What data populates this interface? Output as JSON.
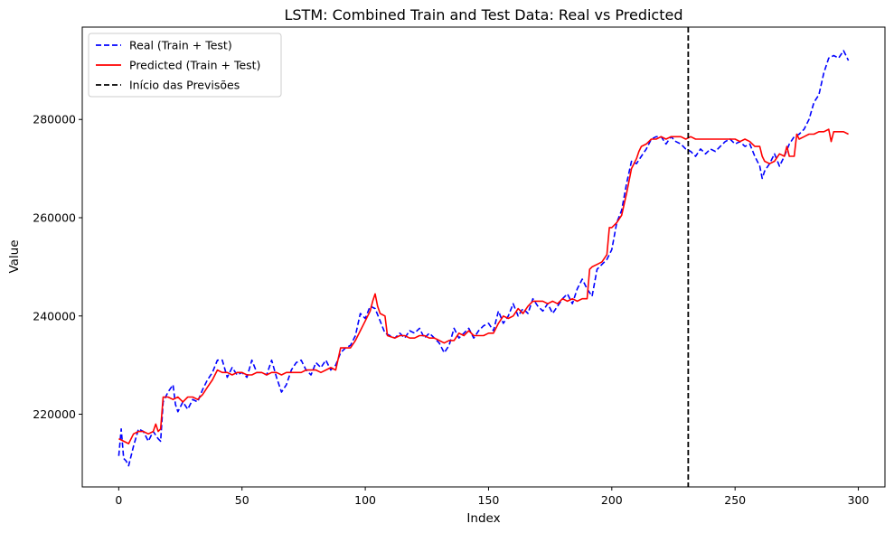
{
  "chart_data": {
    "type": "line",
    "title": "LSTM: Combined Train and Test Data: Real vs Predicted",
    "xlabel": "Index",
    "ylabel": "Value",
    "xlim": [
      -14.8,
      310.8
    ],
    "ylim": [
      205200,
      298800
    ],
    "xticks": [
      0,
      50,
      100,
      150,
      200,
      250,
      300
    ],
    "yticks": [
      220000,
      240000,
      260000,
      280000
    ],
    "grid": false,
    "legend_position": "top-left",
    "vline": {
      "x": 231,
      "label": "Início das Previsões",
      "color": "#000000",
      "style": "dashed"
    },
    "series": [
      {
        "name": "Real (Train + Test)",
        "color": "#0000ff",
        "style": "dashed",
        "points": [
          [
            0,
            211500
          ],
          [
            1,
            217000
          ],
          [
            2,
            211000
          ],
          [
            3,
            210500
          ],
          [
            4,
            209500
          ],
          [
            6,
            213500
          ],
          [
            8,
            217000
          ],
          [
            10,
            216500
          ],
          [
            12,
            214500
          ],
          [
            14,
            216500
          ],
          [
            16,
            215000
          ],
          [
            17,
            214500
          ],
          [
            18,
            222500
          ],
          [
            20,
            224500
          ],
          [
            22,
            226000
          ],
          [
            23,
            222000
          ],
          [
            24,
            220500
          ],
          [
            26,
            222500
          ],
          [
            28,
            221000
          ],
          [
            30,
            223000
          ],
          [
            32,
            222500
          ],
          [
            34,
            225000
          ],
          [
            36,
            227000
          ],
          [
            38,
            228500
          ],
          [
            40,
            231000
          ],
          [
            42,
            231000
          ],
          [
            44,
            227500
          ],
          [
            46,
            229500
          ],
          [
            48,
            228000
          ],
          [
            50,
            228500
          ],
          [
            52,
            227500
          ],
          [
            54,
            231000
          ],
          [
            56,
            228500
          ],
          [
            58,
            228500
          ],
          [
            60,
            228000
          ],
          [
            62,
            231000
          ],
          [
            64,
            227500
          ],
          [
            66,
            224500
          ],
          [
            68,
            226000
          ],
          [
            70,
            229000
          ],
          [
            72,
            230500
          ],
          [
            74,
            231000
          ],
          [
            76,
            229000
          ],
          [
            78,
            228000
          ],
          [
            80,
            230500
          ],
          [
            82,
            229500
          ],
          [
            84,
            231000
          ],
          [
            86,
            229000
          ],
          [
            88,
            230000
          ],
          [
            90,
            232500
          ],
          [
            92,
            233500
          ],
          [
            94,
            234000
          ],
          [
            96,
            236000
          ],
          [
            98,
            240500
          ],
          [
            100,
            239500
          ],
          [
            102,
            242000
          ],
          [
            104,
            241500
          ],
          [
            106,
            239000
          ],
          [
            108,
            236500
          ],
          [
            110,
            236000
          ],
          [
            112,
            235500
          ],
          [
            114,
            236500
          ],
          [
            116,
            235500
          ],
          [
            118,
            237000
          ],
          [
            120,
            236500
          ],
          [
            122,
            237500
          ],
          [
            124,
            235500
          ],
          [
            126,
            236500
          ],
          [
            128,
            235500
          ],
          [
            130,
            234500
          ],
          [
            132,
            232500
          ],
          [
            134,
            234000
          ],
          [
            136,
            237500
          ],
          [
            138,
            235500
          ],
          [
            140,
            236500
          ],
          [
            142,
            237500
          ],
          [
            144,
            235500
          ],
          [
            146,
            237000
          ],
          [
            148,
            238000
          ],
          [
            150,
            238500
          ],
          [
            152,
            237000
          ],
          [
            154,
            241000
          ],
          [
            156,
            238500
          ],
          [
            158,
            240000
          ],
          [
            160,
            242500
          ],
          [
            162,
            240000
          ],
          [
            164,
            241500
          ],
          [
            166,
            240500
          ],
          [
            168,
            243500
          ],
          [
            170,
            242000
          ],
          [
            172,
            241000
          ],
          [
            174,
            242500
          ],
          [
            176,
            240500
          ],
          [
            178,
            242000
          ],
          [
            180,
            243500
          ],
          [
            182,
            244500
          ],
          [
            184,
            242500
          ],
          [
            186,
            245500
          ],
          [
            188,
            247500
          ],
          [
            190,
            245500
          ],
          [
            192,
            244000
          ],
          [
            194,
            249500
          ],
          [
            196,
            250500
          ],
          [
            198,
            251500
          ],
          [
            200,
            253500
          ],
          [
            202,
            259000
          ],
          [
            204,
            261500
          ],
          [
            206,
            267000
          ],
          [
            208,
            271500
          ],
          [
            210,
            271000
          ],
          [
            212,
            272500
          ],
          [
            214,
            274000
          ],
          [
            216,
            276000
          ],
          [
            218,
            276500
          ],
          [
            220,
            276500
          ],
          [
            222,
            275000
          ],
          [
            224,
            276500
          ],
          [
            226,
            275500
          ],
          [
            228,
            275000
          ],
          [
            230,
            274000
          ],
          [
            232,
            273500
          ],
          [
            234,
            272500
          ],
          [
            236,
            274000
          ],
          [
            238,
            273000
          ],
          [
            240,
            274000
          ],
          [
            242,
            273500
          ],
          [
            244,
            274500
          ],
          [
            246,
            275500
          ],
          [
            248,
            276000
          ],
          [
            250,
            275000
          ],
          [
            252,
            275500
          ],
          [
            254,
            274500
          ],
          [
            256,
            275000
          ],
          [
            258,
            272500
          ],
          [
            260,
            270500
          ],
          [
            261,
            268000
          ],
          [
            262,
            269500
          ],
          [
            264,
            271000
          ],
          [
            266,
            273000
          ],
          [
            268,
            270500
          ],
          [
            270,
            272500
          ],
          [
            272,
            275000
          ],
          [
            274,
            276500
          ],
          [
            276,
            277000
          ],
          [
            278,
            278000
          ],
          [
            280,
            280000
          ],
          [
            282,
            283500
          ],
          [
            284,
            285000
          ],
          [
            286,
            289500
          ],
          [
            288,
            292500
          ],
          [
            290,
            293000
          ],
          [
            292,
            292500
          ],
          [
            294,
            294000
          ],
          [
            296,
            292000
          ]
        ]
      },
      {
        "name": "Predicted (Train + Test)",
        "color": "#ff0000",
        "style": "solid",
        "points": [
          [
            0,
            215000
          ],
          [
            2,
            214500
          ],
          [
            4,
            214000
          ],
          [
            6,
            216000
          ],
          [
            8,
            216500
          ],
          [
            10,
            216500
          ],
          [
            12,
            216000
          ],
          [
            14,
            216500
          ],
          [
            15,
            218000
          ],
          [
            16,
            216500
          ],
          [
            17,
            217000
          ],
          [
            18,
            223500
          ],
          [
            20,
            223500
          ],
          [
            22,
            223000
          ],
          [
            24,
            223500
          ],
          [
            26,
            222500
          ],
          [
            28,
            223500
          ],
          [
            30,
            223500
          ],
          [
            32,
            223000
          ],
          [
            34,
            224000
          ],
          [
            36,
            225500
          ],
          [
            38,
            227000
          ],
          [
            40,
            229000
          ],
          [
            42,
            228500
          ],
          [
            44,
            228500
          ],
          [
            46,
            228000
          ],
          [
            48,
            228500
          ],
          [
            50,
            228500
          ],
          [
            52,
            228000
          ],
          [
            54,
            228000
          ],
          [
            56,
            228500
          ],
          [
            58,
            228500
          ],
          [
            60,
            228000
          ],
          [
            62,
            228500
          ],
          [
            64,
            228500
          ],
          [
            66,
            228000
          ],
          [
            68,
            228500
          ],
          [
            70,
            228500
          ],
          [
            72,
            228500
          ],
          [
            74,
            228500
          ],
          [
            76,
            229000
          ],
          [
            78,
            229000
          ],
          [
            80,
            229000
          ],
          [
            82,
            228500
          ],
          [
            84,
            229000
          ],
          [
            86,
            229500
          ],
          [
            88,
            229000
          ],
          [
            90,
            233500
          ],
          [
            92,
            233500
          ],
          [
            94,
            233500
          ],
          [
            96,
            235000
          ],
          [
            98,
            237000
          ],
          [
            100,
            239000
          ],
          [
            102,
            241000
          ],
          [
            103,
            243000
          ],
          [
            104,
            244500
          ],
          [
            105,
            242000
          ],
          [
            106,
            240500
          ],
          [
            108,
            240000
          ],
          [
            109,
            236000
          ],
          [
            112,
            235500
          ],
          [
            114,
            236000
          ],
          [
            116,
            236000
          ],
          [
            118,
            235500
          ],
          [
            120,
            235500
          ],
          [
            122,
            236000
          ],
          [
            124,
            236000
          ],
          [
            126,
            235500
          ],
          [
            128,
            235500
          ],
          [
            130,
            235000
          ],
          [
            132,
            234500
          ],
          [
            134,
            235000
          ],
          [
            136,
            235000
          ],
          [
            138,
            236500
          ],
          [
            140,
            236000
          ],
          [
            142,
            237000
          ],
          [
            144,
            236000
          ],
          [
            146,
            236000
          ],
          [
            148,
            236000
          ],
          [
            150,
            236500
          ],
          [
            152,
            236500
          ],
          [
            154,
            238500
          ],
          [
            156,
            240000
          ],
          [
            158,
            239500
          ],
          [
            160,
            240000
          ],
          [
            162,
            241500
          ],
          [
            164,
            240500
          ],
          [
            166,
            242000
          ],
          [
            168,
            243000
          ],
          [
            170,
            243000
          ],
          [
            172,
            243000
          ],
          [
            174,
            242500
          ],
          [
            176,
            243000
          ],
          [
            178,
            242500
          ],
          [
            180,
            243500
          ],
          [
            182,
            243000
          ],
          [
            184,
            243500
          ],
          [
            186,
            243000
          ],
          [
            188,
            243500
          ],
          [
            190,
            243500
          ],
          [
            191,
            249500
          ],
          [
            192,
            250000
          ],
          [
            194,
            250500
          ],
          [
            196,
            251000
          ],
          [
            198,
            252500
          ],
          [
            199,
            258000
          ],
          [
            200,
            258000
          ],
          [
            202,
            259000
          ],
          [
            204,
            260500
          ],
          [
            206,
            265000
          ],
          [
            208,
            270000
          ],
          [
            210,
            272000
          ],
          [
            211,
            273500
          ],
          [
            212,
            274500
          ],
          [
            214,
            275000
          ],
          [
            216,
            276000
          ],
          [
            218,
            276000
          ],
          [
            220,
            276500
          ],
          [
            222,
            276000
          ],
          [
            224,
            276500
          ],
          [
            226,
            276500
          ],
          [
            228,
            276500
          ],
          [
            230,
            276000
          ],
          [
            232,
            276500
          ],
          [
            234,
            276000
          ],
          [
            236,
            276000
          ],
          [
            238,
            276000
          ],
          [
            240,
            276000
          ],
          [
            242,
            276000
          ],
          [
            244,
            276000
          ],
          [
            246,
            276000
          ],
          [
            248,
            276000
          ],
          [
            250,
            276000
          ],
          [
            252,
            275500
          ],
          [
            254,
            276000
          ],
          [
            256,
            275500
          ],
          [
            258,
            274500
          ],
          [
            260,
            274500
          ],
          [
            261,
            272500
          ],
          [
            262,
            271500
          ],
          [
            264,
            271000
          ],
          [
            266,
            271500
          ],
          [
            268,
            273000
          ],
          [
            270,
            272500
          ],
          [
            271,
            274500
          ],
          [
            272,
            272500
          ],
          [
            274,
            272500
          ],
          [
            275,
            277000
          ],
          [
            276,
            276000
          ],
          [
            278,
            276500
          ],
          [
            280,
            277000
          ],
          [
            282,
            277000
          ],
          [
            284,
            277500
          ],
          [
            286,
            277500
          ],
          [
            288,
            278000
          ],
          [
            289,
            275500
          ],
          [
            290,
            277500
          ],
          [
            292,
            277500
          ],
          [
            294,
            277500
          ],
          [
            296,
            277000
          ]
        ]
      }
    ]
  }
}
